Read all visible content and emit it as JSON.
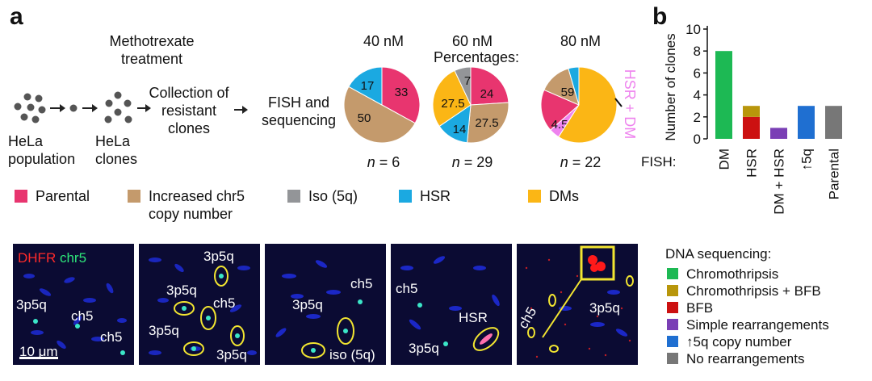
{
  "panel_a": {
    "label": "a",
    "treatment": [
      "Methotrexate",
      "treatment"
    ],
    "hela_population": [
      "HeLa",
      "population"
    ],
    "hela_clones": [
      "HeLa",
      "clones"
    ],
    "collection": [
      "Collection of",
      "resistant",
      "clones"
    ],
    "fish_seq": [
      "FISH and",
      "sequencing"
    ],
    "percentages_label": "Percentages:",
    "hsr_dm_label": "HSR + DM",
    "pies": [
      {
        "title": "40 nM",
        "n_label": "= 6",
        "slices": [
          {
            "cat": "Parental",
            "value": 33,
            "label": "33"
          },
          {
            "cat": "chr5",
            "value": 50,
            "label": "50"
          },
          {
            "cat": "HSR",
            "value": 17,
            "label": "17"
          }
        ]
      },
      {
        "title": "60 nM",
        "n_label": "= 29",
        "slices": [
          {
            "cat": "Parental",
            "value": 24,
            "label": "24"
          },
          {
            "cat": "chr5",
            "value": 27.5,
            "label": "27.5"
          },
          {
            "cat": "HSR",
            "value": 14,
            "label": "14"
          },
          {
            "cat": "DMs",
            "value": 27.5,
            "label": "27.5"
          },
          {
            "cat": "Iso",
            "value": 7,
            "label": "7"
          }
        ]
      },
      {
        "title": "80 nM",
        "n_label": "= 22",
        "slices": [
          {
            "cat": "HSRDM",
            "value": 4.5,
            "label": "4.5"
          },
          {
            "cat": "Parental",
            "value": 18,
            "label": "18"
          },
          {
            "cat": "chr5",
            "value": 14,
            "label": "14"
          },
          {
            "cat": "HSR",
            "value": 4.5,
            "label": "4.5"
          },
          {
            "cat": "DMs",
            "value": 59,
            "label": "59"
          }
        ]
      }
    ],
    "legend": [
      {
        "label": "Parental",
        "color": "#e8356f"
      },
      {
        "label": "Increased chr5",
        "label2": "copy number",
        "color": "#c49a6c"
      },
      {
        "label": "Iso (5q)",
        "color": "#939598"
      },
      {
        "label": "HSR",
        "color": "#1ba9e1"
      },
      {
        "label": "DMs",
        "color": "#fbb615"
      }
    ],
    "colors": {
      "Parental": "#e8356f",
      "chr5": "#c49a6c",
      "Iso": "#939598",
      "HSR": "#1ba9e1",
      "DMs": "#fbb615",
      "HSRDM": "#ee82ee"
    },
    "micro": {
      "dhfr": "DHFR",
      "chr5": "chr5",
      "scale": "10 μm",
      "p1": [
        "3p5q",
        "ch5",
        "ch5"
      ],
      "p2": [
        "3p5q",
        "3p5q",
        "ch5",
        "3p5q",
        "3p5q"
      ],
      "p3": [
        "ch5",
        "3p5q",
        "iso (5q)"
      ],
      "p4": [
        "ch5",
        "HSR",
        "3p5q"
      ],
      "p5": [
        "ch5",
        "3p5q"
      ]
    }
  },
  "panel_b": {
    "label": "b",
    "fish_label": "FISH:",
    "dna_title": "DNA sequencing:",
    "dna_legend": [
      {
        "label": "Chromothripsis",
        "color": "#1db954"
      },
      {
        "label": "Chromothripsis + BFB",
        "color": "#b8960b"
      },
      {
        "label": "BFB",
        "color": "#cc1111"
      },
      {
        "label": "Simple rearrangements",
        "color": "#7a3fb5"
      },
      {
        "label": "↑5q copy number",
        "color": "#1f6fd1"
      },
      {
        "label": "No rearrangements",
        "color": "#777777"
      }
    ]
  },
  "chart_data": {
    "type": "bar",
    "ylabel": "Number of clones",
    "ylim": [
      0,
      10
    ],
    "yticks": [
      "0",
      "2",
      "4",
      "6",
      "8",
      "10"
    ],
    "categories": [
      "DM",
      "HSR",
      "DM + HSR",
      "↑5q",
      "Parental"
    ],
    "stacks": [
      [
        {
          "name": "Chromothripsis",
          "value": 8,
          "color": "#1db954"
        }
      ],
      [
        {
          "name": "BFB",
          "value": 2,
          "color": "#cc1111"
        },
        {
          "name": "Chromothripsis + BFB",
          "value": 1,
          "color": "#b8960b"
        }
      ],
      [
        {
          "name": "Simple rearrangements",
          "value": 1,
          "color": "#7a3fb5"
        }
      ],
      [
        {
          "name": "↑5q copy number",
          "value": 3,
          "color": "#1f6fd1"
        }
      ],
      [
        {
          "name": "No rearrangements",
          "value": 3,
          "color": "#777777"
        }
      ]
    ]
  }
}
